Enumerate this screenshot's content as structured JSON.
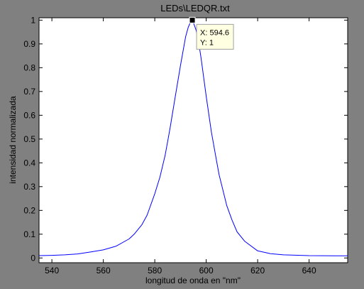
{
  "window": {
    "background": "#808080"
  },
  "chart_data": {
    "type": "line",
    "title": "LEDs\\LEDQR.txt",
    "xlabel": "longitud de onda en \"nm\"",
    "ylabel": "intensidad normalizada",
    "xlim": [
      535,
      655
    ],
    "ylim": [
      -0.02,
      1.01
    ],
    "xticks": [
      540,
      560,
      580,
      600,
      620,
      640
    ],
    "xtick_labels": [
      "540",
      "560",
      "580",
      "600",
      "620",
      "640"
    ],
    "yticks": [
      0,
      0.1,
      0.2,
      0.3,
      0.4,
      0.5,
      0.6,
      0.7,
      0.8,
      0.9,
      1
    ],
    "ytick_labels": [
      "0",
      "0.1",
      "0.2",
      "0.3",
      "0.4",
      "0.5",
      "0.6",
      "0.7",
      "0.8",
      "0.9",
      "1"
    ],
    "grid": false,
    "series": [
      {
        "name": "LEDQR",
        "color": "#0000ff",
        "x": [
          535,
          540,
          545,
          550,
          555,
          560,
          565,
          570,
          572,
          575,
          577,
          580,
          582,
          584,
          585,
          586,
          588,
          590,
          591,
          592,
          593,
          594,
          594.6,
          595,
          596,
          597,
          598,
          599,
          600,
          602,
          604,
          605,
          608,
          610,
          612,
          615,
          620,
          625,
          630,
          640,
          650,
          655
        ],
        "y": [
          0.01,
          0.011,
          0.013,
          0.017,
          0.025,
          0.034,
          0.05,
          0.08,
          0.1,
          0.14,
          0.18,
          0.27,
          0.34,
          0.43,
          0.49,
          0.55,
          0.68,
          0.81,
          0.87,
          0.93,
          0.97,
          0.995,
          1.0,
          0.99,
          0.96,
          0.91,
          0.84,
          0.76,
          0.68,
          0.53,
          0.41,
          0.35,
          0.22,
          0.16,
          0.11,
          0.07,
          0.03,
          0.018,
          0.013,
          0.01,
          0.009,
          0.009
        ]
      }
    ],
    "datatip": {
      "x": 594.6,
      "y": 1,
      "x_text": "X: 594.6",
      "y_text": "Y: 1"
    }
  }
}
